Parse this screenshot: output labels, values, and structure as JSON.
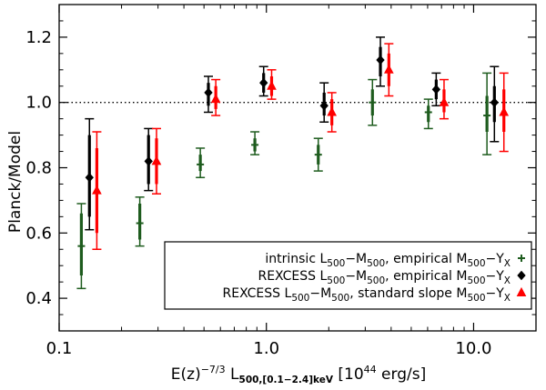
{
  "chart_data": {
    "type": "scatter",
    "title": "",
    "xlabel": {
      "prefix": "E(z)",
      "exp": "−7/3",
      "sym": " L",
      "sub": "500,[0.1−2.4]keV",
      "unit": " [10",
      "unit_exp": "44",
      "unit_tail": " erg/s]"
    },
    "ylabel": "Planck/Model",
    "xscale": "log",
    "xlim": [
      0.1,
      20
    ],
    "ylim": [
      0.3,
      1.3
    ],
    "xticks": [
      {
        "value": 0.1,
        "label": "0.1"
      },
      {
        "value": 1.0,
        "label": "1.0"
      },
      {
        "value": 10.0,
        "label": "10.0"
      }
    ],
    "yticks": [
      {
        "value": 0.4,
        "label": "0.4"
      },
      {
        "value": 0.6,
        "label": "0.6"
      },
      {
        "value": 0.8,
        "label": "0.8"
      },
      {
        "value": 1.0,
        "label": "1.0"
      },
      {
        "value": 1.2,
        "label": "1.2"
      }
    ],
    "reference_line": {
      "y": 1.0,
      "style": "dotted"
    },
    "series": [
      {
        "name": "intrinsic L500−M500, empirical M500−YX",
        "marker": "plus",
        "color": "#1e5c1e",
        "points": [
          {
            "x": 0.128,
            "y": 0.56,
            "outer": [
              0.43,
              0.69
            ],
            "inner": [
              0.47,
              0.66
            ]
          },
          {
            "x": 0.245,
            "y": 0.63,
            "outer": [
              0.56,
              0.71
            ],
            "inner": [
              0.58,
              0.69
            ]
          },
          {
            "x": 0.48,
            "y": 0.81,
            "outer": [
              0.77,
              0.86
            ],
            "inner": [
              0.79,
              0.84
            ]
          },
          {
            "x": 0.88,
            "y": 0.87,
            "outer": [
              0.84,
              0.91
            ],
            "inner": [
              0.85,
              0.89
            ]
          },
          {
            "x": 1.78,
            "y": 0.84,
            "outer": [
              0.79,
              0.89
            ],
            "inner": [
              0.81,
              0.87
            ]
          },
          {
            "x": 3.25,
            "y": 1.0,
            "outer": [
              0.93,
              1.07
            ],
            "inner": [
              0.96,
              1.04
            ]
          },
          {
            "x": 6.05,
            "y": 0.97,
            "outer": [
              0.92,
              1.01
            ],
            "inner": [
              0.94,
              0.99
            ]
          },
          {
            "x": 11.6,
            "y": 0.96,
            "outer": [
              0.84,
              1.09
            ],
            "inner": [
              0.91,
              1.02
            ]
          }
        ]
      },
      {
        "name": "REXCESS L500−M500, empirical M500−YX",
        "marker": "diamond",
        "color": "#000000",
        "points": [
          {
            "x": 0.14,
            "y": 0.77,
            "outer": [
              0.61,
              0.95
            ],
            "inner": [
              0.65,
              0.9
            ]
          },
          {
            "x": 0.27,
            "y": 0.82,
            "outer": [
              0.73,
              0.92
            ],
            "inner": [
              0.75,
              0.9
            ]
          },
          {
            "x": 0.525,
            "y": 1.03,
            "outer": [
              0.97,
              1.08
            ],
            "inner": [
              0.99,
              1.06
            ]
          },
          {
            "x": 0.97,
            "y": 1.06,
            "outer": [
              1.02,
              1.11
            ],
            "inner": [
              1.03,
              1.09
            ]
          },
          {
            "x": 1.9,
            "y": 0.99,
            "outer": [
              0.94,
              1.06
            ],
            "inner": [
              0.96,
              1.03
            ]
          },
          {
            "x": 3.55,
            "y": 1.13,
            "outer": [
              1.05,
              1.2
            ],
            "inner": [
              1.08,
              1.17
            ]
          },
          {
            "x": 6.6,
            "y": 1.04,
            "outer": [
              0.99,
              1.09
            ],
            "inner": [
              1.01,
              1.07
            ]
          },
          {
            "x": 12.6,
            "y": 1.0,
            "outer": [
              0.88,
              1.11
            ],
            "inner": [
              0.94,
              1.05
            ]
          }
        ]
      },
      {
        "name": "REXCESS L500−M500, standard slope M500−YX",
        "marker": "triangle",
        "color": "#ff0000",
        "points": [
          {
            "x": 0.152,
            "y": 0.73,
            "outer": [
              0.55,
              0.91
            ],
            "inner": [
              0.6,
              0.86
            ]
          },
          {
            "x": 0.295,
            "y": 0.82,
            "outer": [
              0.72,
              0.92
            ],
            "inner": [
              0.75,
              0.89
            ]
          },
          {
            "x": 0.57,
            "y": 1.01,
            "outer": [
              0.96,
              1.07
            ],
            "inner": [
              0.98,
              1.05
            ]
          },
          {
            "x": 1.06,
            "y": 1.05,
            "outer": [
              1.01,
              1.1
            ],
            "inner": [
              1.02,
              1.08
            ]
          },
          {
            "x": 2.07,
            "y": 0.97,
            "outer": [
              0.91,
              1.03
            ],
            "inner": [
              0.93,
              1.01
            ]
          },
          {
            "x": 3.9,
            "y": 1.1,
            "outer": [
              1.02,
              1.18
            ],
            "inner": [
              1.05,
              1.15
            ]
          },
          {
            "x": 7.2,
            "y": 1.0,
            "outer": [
              0.95,
              1.07
            ],
            "inner": [
              0.97,
              1.04
            ]
          },
          {
            "x": 14.0,
            "y": 0.97,
            "outer": [
              0.85,
              1.09
            ],
            "inner": [
              0.91,
              1.04
            ]
          }
        ]
      }
    ],
    "legend": {
      "placement": "bottom-right",
      "entries": [
        {
          "t1": "intrinsic L",
          "s1": "500",
          "t2": "−M",
          "s2": "500",
          "t3": ", empirical M",
          "s3": "500",
          "t4": "−Y",
          "s4": "X"
        },
        {
          "t1": "REXCESS L",
          "s1": "500",
          "t2": "−M",
          "s2": "500",
          "t3": ", empirical M",
          "s3": "500",
          "t4": "−Y",
          "s4": "X"
        },
        {
          "t1": "REXCESS L",
          "s1": "500",
          "t2": "−M",
          "s2": "500",
          "t3": ", standard slope M",
          "s3": "500",
          "t4": "−Y",
          "s4": "X"
        }
      ]
    }
  }
}
